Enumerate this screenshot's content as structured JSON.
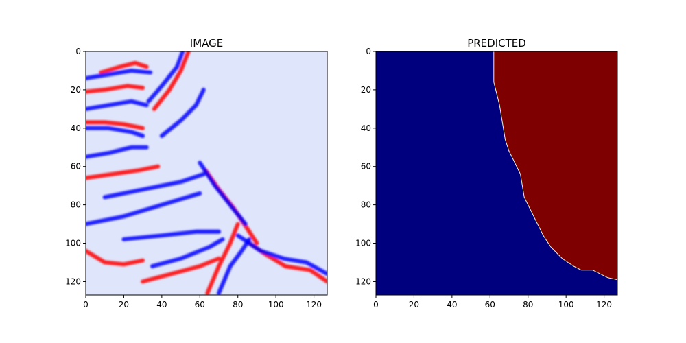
{
  "chart_data": [
    {
      "type": "heatmap",
      "title": "IMAGE",
      "xlabel": "",
      "ylabel": "",
      "xlim": [
        0,
        127
      ],
      "ylim": [
        127,
        0
      ],
      "xticks": [
        0,
        20,
        40,
        60,
        80,
        100,
        120
      ],
      "yticks": [
        0,
        20,
        40,
        60,
        80,
        100,
        120
      ],
      "colormap": "seismic",
      "colors": {
        "negative": "#0000ff",
        "zero": "#ffffff",
        "positive": "#ff0000",
        "deep_positive": "#9a0000"
      },
      "reflectors": [
        {
          "points": [
            [
              0,
              104
            ],
            [
              10,
              110
            ],
            [
              20,
              111
            ],
            [
              30,
              109
            ]
          ],
          "sign": "positive"
        },
        {
          "points": [
            [
              0,
              37
            ],
            [
              10,
              37
            ],
            [
              20,
              38
            ],
            [
              30,
              40
            ]
          ],
          "sign": "positive"
        },
        {
          "points": [
            [
              0,
              40
            ],
            [
              12,
              40
            ],
            [
              24,
              42
            ],
            [
              30,
              44
            ]
          ],
          "sign": "negative"
        },
        {
          "points": [
            [
              8,
              11
            ],
            [
              18,
              8
            ],
            [
              26,
              6
            ],
            [
              32,
              8
            ]
          ],
          "sign": "positive"
        },
        {
          "points": [
            [
              0,
              21
            ],
            [
              10,
              20
            ],
            [
              22,
              18
            ],
            [
              30,
              19
            ]
          ],
          "sign": "positive"
        },
        {
          "points": [
            [
              0,
              30
            ],
            [
              12,
              28
            ],
            [
              24,
              26
            ],
            [
              32,
              28
            ]
          ],
          "sign": "negative"
        },
        {
          "points": [
            [
              0,
              14
            ],
            [
              12,
              12
            ],
            [
              24,
              10
            ],
            [
              34,
              11
            ]
          ],
          "sign": "negative"
        },
        {
          "points": [
            [
              0,
              55
            ],
            [
              12,
              53
            ],
            [
              24,
              50
            ],
            [
              32,
              50
            ]
          ],
          "sign": "negative"
        },
        {
          "points": [
            [
              0,
              66
            ],
            [
              14,
              64
            ],
            [
              28,
              62
            ],
            [
              38,
              60
            ]
          ],
          "sign": "positive"
        },
        {
          "points": [
            [
              0,
              90
            ],
            [
              20,
              86
            ],
            [
              40,
              80
            ],
            [
              60,
              74
            ]
          ],
          "sign": "negative"
        },
        {
          "points": [
            [
              10,
              76
            ],
            [
              30,
              72
            ],
            [
              50,
              68
            ],
            [
              62,
              64
            ]
          ],
          "sign": "negative"
        },
        {
          "points": [
            [
              20,
              98
            ],
            [
              40,
              96
            ],
            [
              58,
              94
            ],
            [
              70,
              94
            ]
          ],
          "sign": "negative"
        },
        {
          "points": [
            [
              30,
              120
            ],
            [
              45,
              116
            ],
            [
              60,
              112
            ],
            [
              70,
              108
            ]
          ],
          "sign": "positive"
        },
        {
          "points": [
            [
              35,
              112
            ],
            [
              50,
              108
            ],
            [
              65,
              102
            ],
            [
              72,
              98
            ]
          ],
          "sign": "negative"
        },
        {
          "points": [
            [
              36,
              30
            ],
            [
              44,
              20
            ],
            [
              50,
              10
            ],
            [
              54,
              0
            ]
          ],
          "sign": "positive"
        },
        {
          "points": [
            [
              33,
              26
            ],
            [
              40,
              18
            ],
            [
              48,
              8
            ],
            [
              51,
              0
            ]
          ],
          "sign": "negative"
        },
        {
          "points": [
            [
              40,
              44
            ],
            [
              50,
              36
            ],
            [
              58,
              28
            ],
            [
              62,
              20
            ]
          ],
          "sign": "negative"
        },
        {
          "points": [
            [
              63,
              62
            ],
            [
              70,
              72
            ],
            [
              78,
              82
            ],
            [
              86,
              94
            ],
            [
              90,
              100
            ]
          ],
          "sign": "positive"
        },
        {
          "points": [
            [
              60,
              58
            ],
            [
              68,
              70
            ],
            [
              76,
              80
            ],
            [
              84,
              90
            ]
          ],
          "sign": "negative"
        },
        {
          "points": [
            [
              86,
              100
            ],
            [
              95,
              106
            ],
            [
              105,
              112
            ],
            [
              118,
              114
            ],
            [
              127,
              120
            ]
          ],
          "sign": "positive"
        },
        {
          "points": [
            [
              80,
              96
            ],
            [
              92,
              104
            ],
            [
              104,
              108
            ],
            [
              116,
              110
            ],
            [
              127,
              116
            ]
          ],
          "sign": "negative"
        },
        {
          "points": [
            [
              64,
              126
            ],
            [
              70,
              112
            ],
            [
              76,
              100
            ],
            [
              80,
              90
            ]
          ],
          "sign": "positive"
        },
        {
          "points": [
            [
              70,
              126
            ],
            [
              76,
              112
            ],
            [
              82,
              104
            ],
            [
              86,
              98
            ]
          ],
          "sign": "negative"
        }
      ],
      "background": "light blue"
    },
    {
      "type": "heatmap",
      "title": "PREDICTED",
      "xlabel": "",
      "ylabel": "",
      "xlim": [
        0,
        127
      ],
      "ylim": [
        127,
        0
      ],
      "xticks": [
        0,
        20,
        40,
        60,
        80,
        100,
        120
      ],
      "yticks": [
        0,
        20,
        40,
        60,
        80,
        100,
        120
      ],
      "colormap": "jet",
      "classes": [
        {
          "value": 0,
          "color": "#00007f"
        },
        {
          "value": 1,
          "color": "#7f0000"
        }
      ],
      "boundary": [
        [
          62,
          0
        ],
        [
          62,
          8
        ],
        [
          62,
          16
        ],
        [
          63,
          20
        ],
        [
          64,
          24
        ],
        [
          65,
          28
        ],
        [
          66,
          34
        ],
        [
          67,
          40
        ],
        [
          68,
          46
        ],
        [
          70,
          52
        ],
        [
          72,
          56
        ],
        [
          74,
          60
        ],
        [
          76,
          64
        ],
        [
          77,
          70
        ],
        [
          78,
          76
        ],
        [
          80,
          80
        ],
        [
          82,
          84
        ],
        [
          84,
          88
        ],
        [
          86,
          92
        ],
        [
          88,
          96
        ],
        [
          90,
          99
        ],
        [
          92,
          102
        ],
        [
          95,
          105
        ],
        [
          98,
          108
        ],
        [
          101,
          110
        ],
        [
          104,
          112
        ],
        [
          108,
          114
        ],
        [
          114,
          114
        ],
        [
          118,
          116
        ],
        [
          122,
          118
        ],
        [
          127,
          119
        ]
      ]
    }
  ]
}
